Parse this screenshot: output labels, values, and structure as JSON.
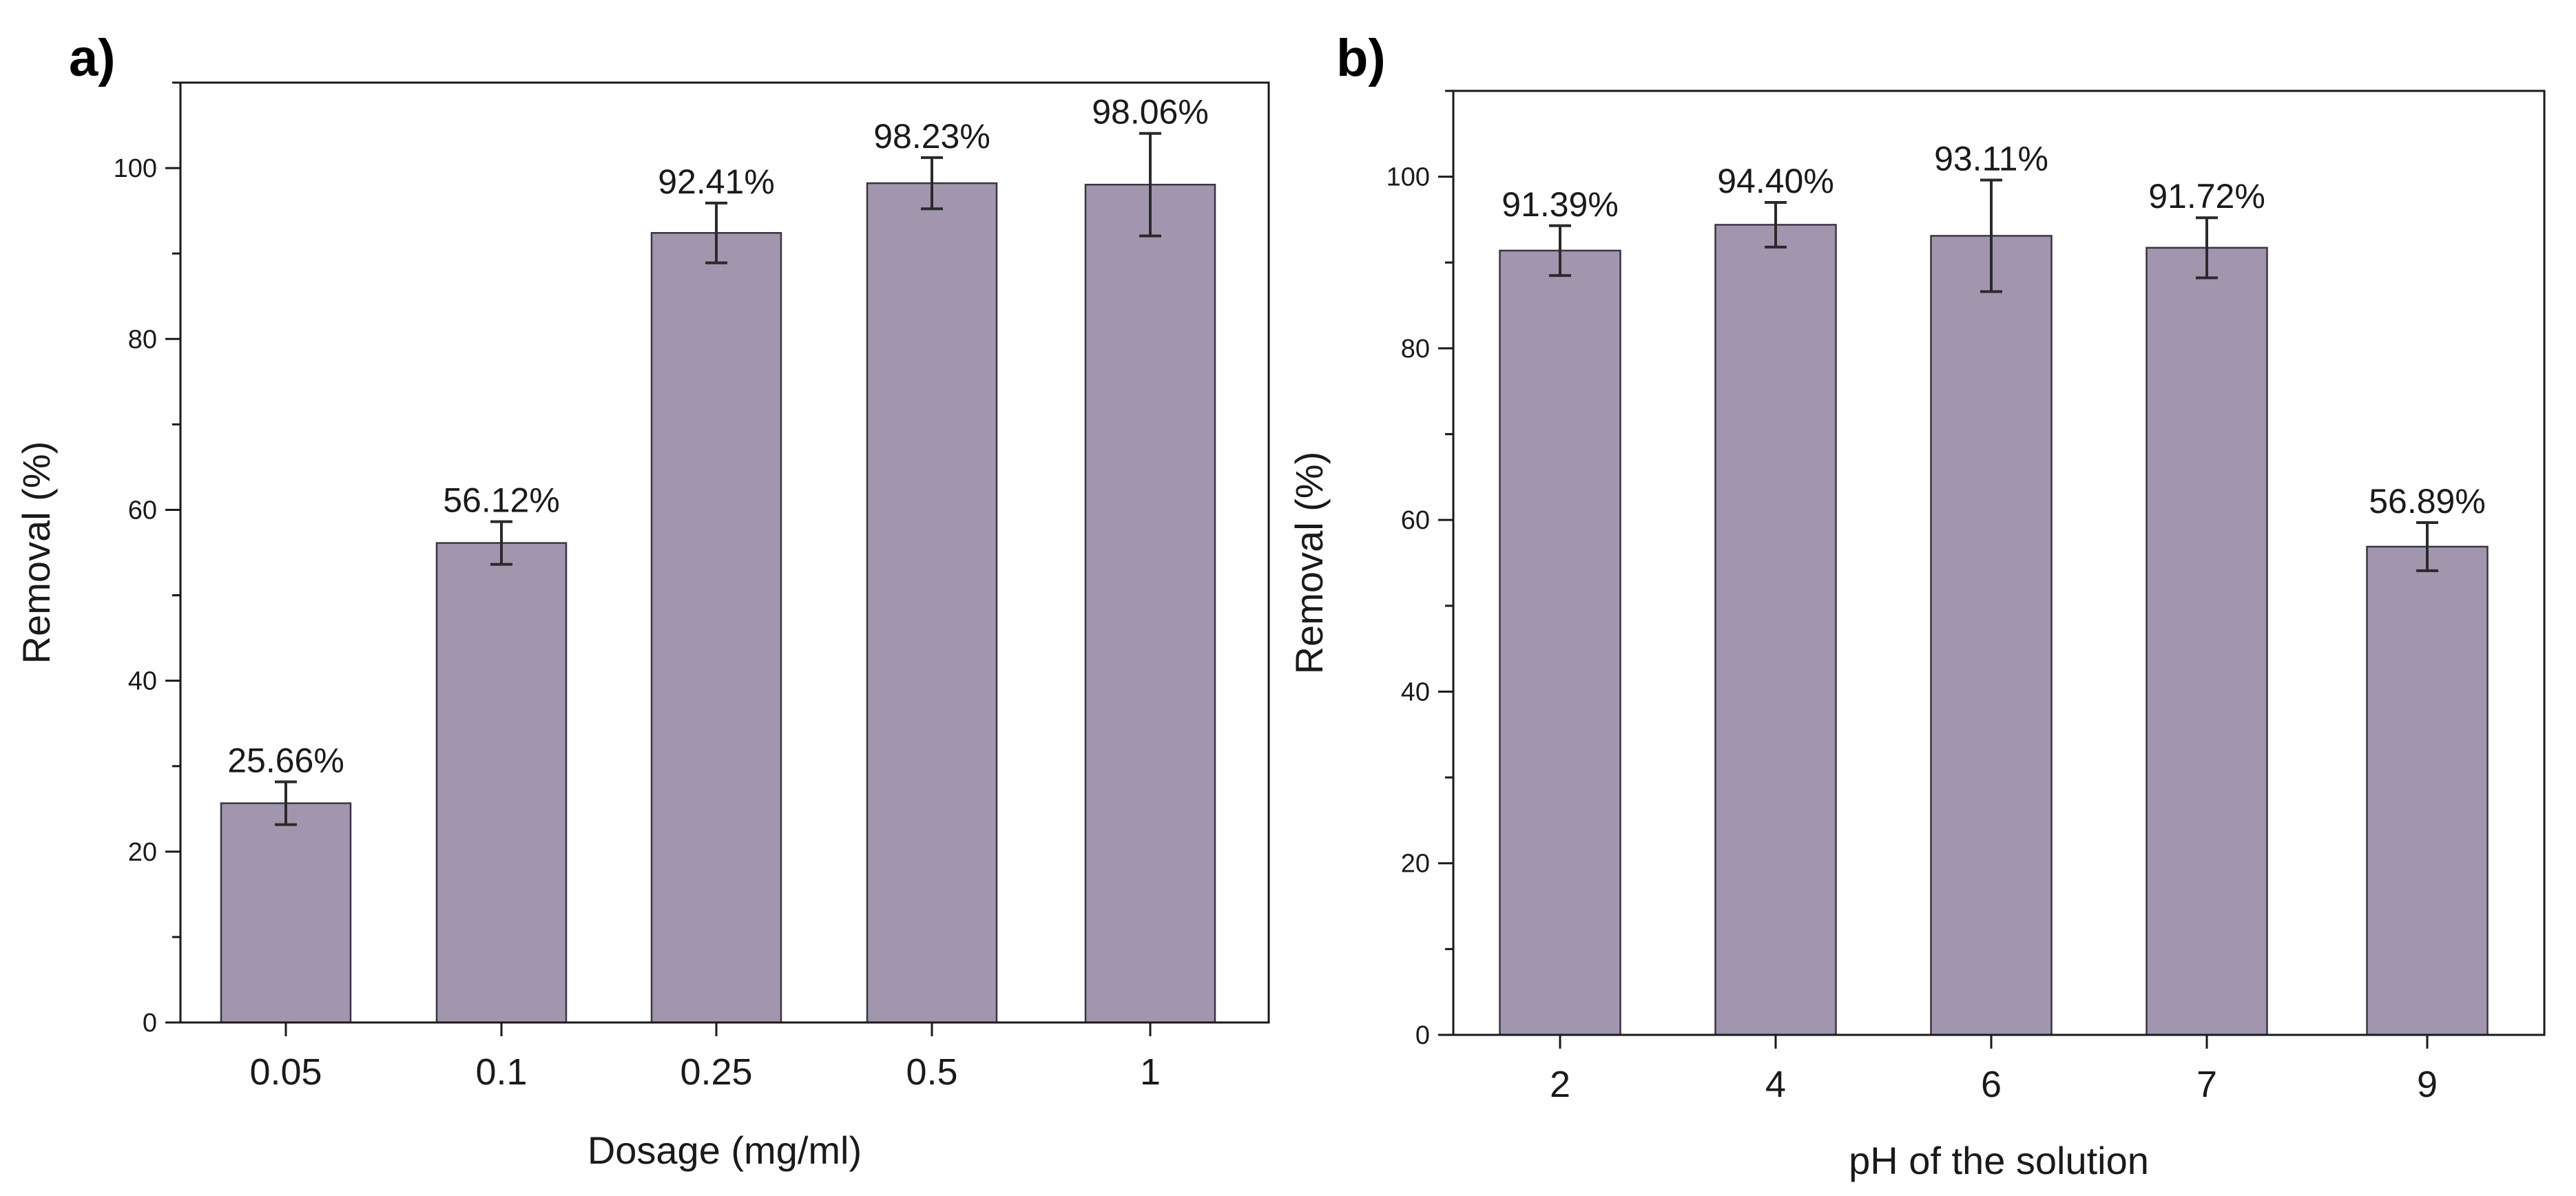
{
  "chart_data": [
    {
      "type": "bar",
      "panel_label": "a)",
      "categories": [
        "0.05",
        "0.1",
        "0.25",
        "0.5",
        "1"
      ],
      "values": [
        25.66,
        56.12,
        92.41,
        98.23,
        98.06
      ],
      "value_labels": [
        "25.66%",
        "56.12%",
        "92.41%",
        "98.23%",
        "98.06%"
      ],
      "error": [
        2.5,
        2.5,
        3.5,
        3.0,
        6.0
      ],
      "xlabel": "Dosage (mg/ml)",
      "ylabel": "Removal (%)",
      "ylim": [
        0,
        110
      ],
      "yticks": [
        0,
        20,
        40,
        60,
        80,
        100
      ],
      "grid": false,
      "color": "#a296ae"
    },
    {
      "type": "bar",
      "panel_label": "b)",
      "categories": [
        "2",
        "4",
        "6",
        "7",
        "9"
      ],
      "values": [
        91.39,
        94.4,
        93.11,
        91.72,
        56.89
      ],
      "value_labels": [
        "91.39%",
        "94.40%",
        "93.11%",
        "91.72%",
        "56.89%"
      ],
      "error": [
        2.9,
        2.6,
        6.5,
        3.5,
        2.8
      ],
      "xlabel": "pH of the solution",
      "ylabel": "Removal (%)",
      "ylim": [
        0,
        110
      ],
      "yticks": [
        0,
        20,
        40,
        60,
        80,
        100
      ],
      "grid": false,
      "color": "#a296ae"
    }
  ]
}
